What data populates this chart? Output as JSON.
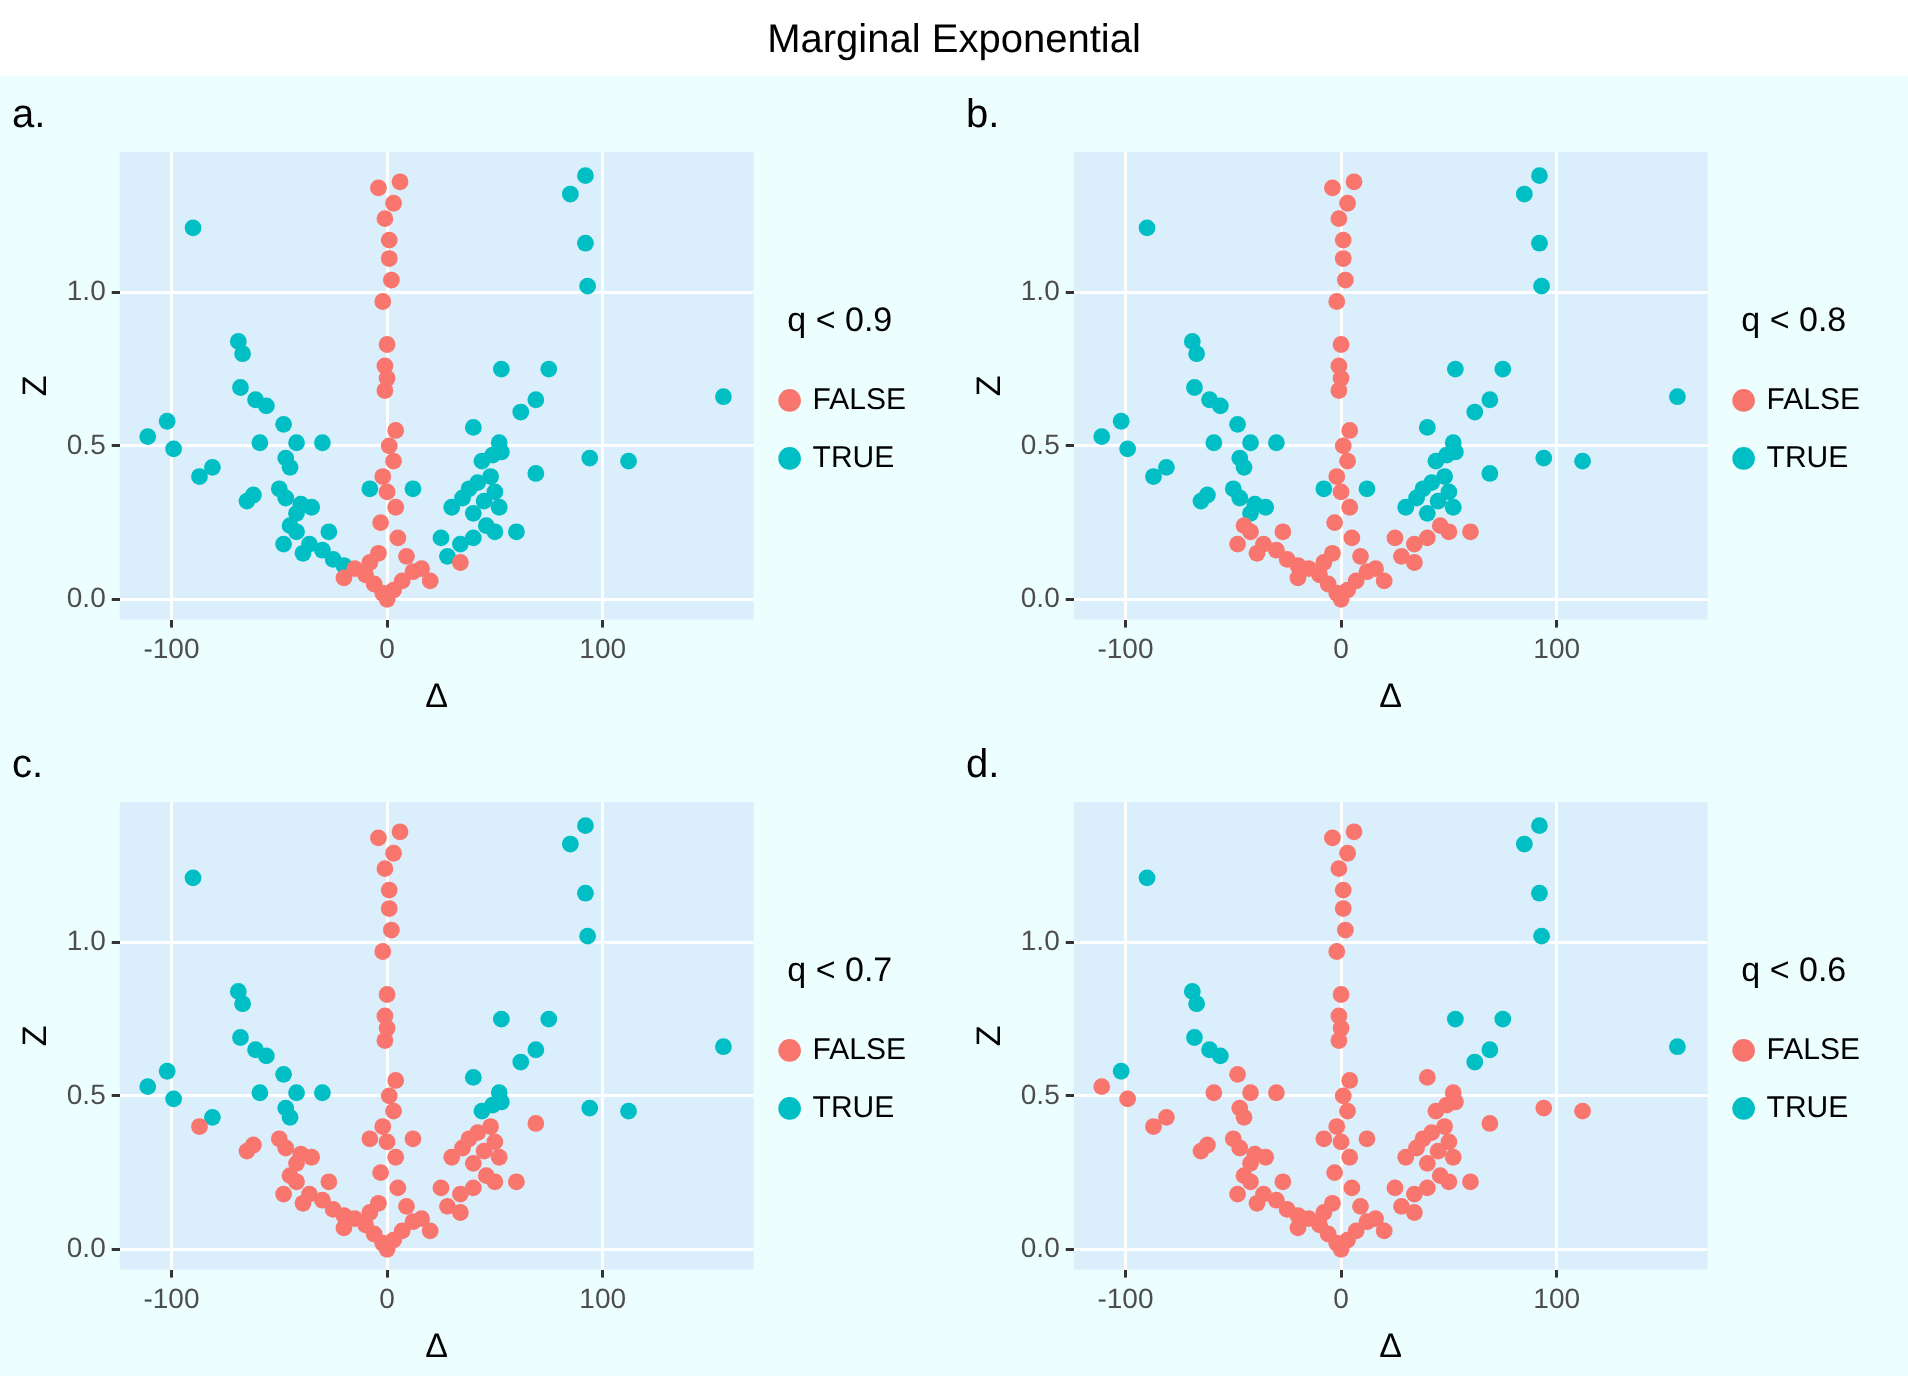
{
  "chart_data": [
    {
      "type": "scatter",
      "title": "a.",
      "annotations": [
        "Marginal Exponential"
      ],
      "xlabel": "Δ",
      "ylabel": "Z",
      "legend_title": "q < 0.9",
      "legend": "right",
      "grid": true,
      "marker": "circle",
      "xlim": [
        -124,
        170
      ],
      "ylim": [
        -0.066,
        1.457
      ],
      "xticks": [
        -100,
        0,
        100
      ],
      "yticks": [
        {
          "value": 0,
          "label": "0.0"
        },
        {
          "value": 0.5,
          "label": "0.5"
        },
        {
          "value": 1,
          "label": "1.0"
        }
      ],
      "series": [
        {
          "name": "FALSE",
          "color": "#f8766d",
          "x": [
            -4,
            6,
            3,
            -1,
            1,
            1,
            2,
            -2,
            0,
            -1,
            0,
            -1,
            4,
            1,
            3,
            -2,
            0,
            4,
            -3,
            5,
            -4,
            34,
            0,
            -2,
            3,
            -6,
            7,
            -10,
            12,
            -15,
            16,
            -20,
            20,
            -8,
            9
          ],
          "values": [
            1.34,
            1.36,
            1.29,
            1.24,
            1.17,
            1.11,
            1.04,
            0.97,
            0.83,
            0.76,
            0.72,
            0.68,
            0.55,
            0.5,
            0.45,
            0.4,
            0.35,
            0.3,
            0.25,
            0.2,
            0.15,
            0.12,
            0,
            0.02,
            0.03,
            0.05,
            0.06,
            0.08,
            0.09,
            0.1,
            0.1,
            0.07,
            0.06,
            0.12,
            0.14
          ]
        },
        {
          "name": "TRUE",
          "color": "#00bfc4",
          "x": [
            -90,
            85,
            92,
            92,
            93,
            156,
            -69,
            -67,
            -68,
            -61,
            -56,
            53,
            75,
            69,
            62,
            -102,
            -111,
            -99,
            -81,
            -59,
            -48,
            -42,
            -30,
            40,
            52,
            94,
            112,
            -47,
            -45,
            44,
            49,
            53,
            -87,
            -65,
            -62,
            -50,
            -47,
            -40,
            -42,
            -35,
            -8,
            12,
            30,
            35,
            38,
            42,
            45,
            50,
            52,
            69,
            48,
            40,
            -45,
            -36,
            -30,
            -25,
            -20,
            -39,
            -42,
            -48,
            28,
            34,
            40,
            46,
            50,
            25,
            -27,
            60
          ],
          "values": [
            1.21,
            1.32,
            1.38,
            1.16,
            1.02,
            0.66,
            0.84,
            0.8,
            0.69,
            0.65,
            0.63,
            0.75,
            0.75,
            0.65,
            0.61,
            0.58,
            0.53,
            0.49,
            0.43,
            0.51,
            0.57,
            0.51,
            0.51,
            0.56,
            0.51,
            0.46,
            0.45,
            0.46,
            0.43,
            0.45,
            0.47,
            0.48,
            0.4,
            0.32,
            0.34,
            0.36,
            0.33,
            0.31,
            0.28,
            0.3,
            0.36,
            0.36,
            0.3,
            0.33,
            0.36,
            0.38,
            0.32,
            0.35,
            0.3,
            0.41,
            0.4,
            0.28,
            0.24,
            0.18,
            0.16,
            0.13,
            0.11,
            0.15,
            0.22,
            0.18,
            0.14,
            0.18,
            0.2,
            0.24,
            0.22,
            0.2,
            0.22,
            0.22
          ]
        }
      ]
    },
    {
      "type": "scatter",
      "title": "b.",
      "xlabel": "Δ",
      "ylabel": "Z",
      "legend_title": "q < 0.8",
      "legend": "right",
      "grid": true,
      "marker": "circle",
      "xlim": [
        -124,
        170
      ],
      "ylim": [
        -0.066,
        1.457
      ],
      "xticks": [
        -100,
        0,
        100
      ],
      "yticks": [
        {
          "value": 0,
          "label": "0.0"
        },
        {
          "value": 0.5,
          "label": "0.5"
        },
        {
          "value": 1,
          "label": "1.0"
        }
      ],
      "series": [
        {
          "name": "FALSE",
          "color": "#f8766d",
          "x": [
            -45,
            -36,
            -30,
            -25,
            -20,
            -39,
            -42,
            -48,
            28,
            34,
            40,
            46,
            50,
            25,
            -27,
            60,
            -4,
            6,
            3,
            -1,
            1,
            1,
            2,
            -2,
            0,
            -1,
            0,
            -1,
            4,
            1,
            3,
            -2,
            0,
            4,
            -3,
            5,
            -4,
            34,
            0,
            -2,
            3,
            -6,
            7,
            -10,
            12,
            -15,
            16,
            -20,
            20,
            -8,
            9
          ],
          "values": [
            0.24,
            0.18,
            0.16,
            0.13,
            0.11,
            0.15,
            0.22,
            0.18,
            0.14,
            0.18,
            0.2,
            0.24,
            0.22,
            0.2,
            0.22,
            0.22,
            1.34,
            1.36,
            1.29,
            1.24,
            1.17,
            1.11,
            1.04,
            0.97,
            0.83,
            0.76,
            0.72,
            0.68,
            0.55,
            0.5,
            0.45,
            0.4,
            0.35,
            0.3,
            0.25,
            0.2,
            0.15,
            0.12,
            0,
            0.02,
            0.03,
            0.05,
            0.06,
            0.08,
            0.09,
            0.1,
            0.1,
            0.07,
            0.06,
            0.12,
            0.14
          ]
        },
        {
          "name": "TRUE",
          "color": "#00bfc4",
          "x": [
            -90,
            85,
            92,
            92,
            93,
            156,
            -69,
            -67,
            -68,
            -61,
            -56,
            53,
            75,
            69,
            62,
            -102,
            -111,
            -99,
            -81,
            -59,
            -48,
            -42,
            -30,
            40,
            52,
            94,
            112,
            -47,
            -45,
            44,
            49,
            53,
            -87,
            -65,
            -62,
            -50,
            -47,
            -40,
            -42,
            -35,
            -8,
            12,
            30,
            35,
            38,
            42,
            45,
            50,
            52,
            69,
            48,
            40
          ],
          "values": [
            1.21,
            1.32,
            1.38,
            1.16,
            1.02,
            0.66,
            0.84,
            0.8,
            0.69,
            0.65,
            0.63,
            0.75,
            0.75,
            0.65,
            0.61,
            0.58,
            0.53,
            0.49,
            0.43,
            0.51,
            0.57,
            0.51,
            0.51,
            0.56,
            0.51,
            0.46,
            0.45,
            0.46,
            0.43,
            0.45,
            0.47,
            0.48,
            0.4,
            0.32,
            0.34,
            0.36,
            0.33,
            0.31,
            0.28,
            0.3,
            0.36,
            0.36,
            0.3,
            0.33,
            0.36,
            0.38,
            0.32,
            0.35,
            0.3,
            0.41,
            0.4,
            0.28
          ]
        }
      ]
    },
    {
      "type": "scatter",
      "title": "c.",
      "xlabel": "Δ",
      "ylabel": "Z",
      "legend_title": "q < 0.7",
      "legend": "right",
      "grid": true,
      "marker": "circle",
      "xlim": [
        -124,
        170
      ],
      "ylim": [
        -0.066,
        1.457
      ],
      "xticks": [
        -100,
        0,
        100
      ],
      "yticks": [
        {
          "value": 0,
          "label": "0.0"
        },
        {
          "value": 0.5,
          "label": "0.5"
        },
        {
          "value": 1,
          "label": "1.0"
        }
      ],
      "series": [
        {
          "name": "FALSE",
          "color": "#f8766d",
          "x": [
            -87,
            -65,
            -62,
            -50,
            -47,
            -40,
            -42,
            -35,
            -8,
            12,
            30,
            35,
            38,
            42,
            45,
            50,
            52,
            69,
            48,
            40,
            -45,
            -36,
            -30,
            -25,
            -20,
            -39,
            -42,
            -48,
            28,
            34,
            40,
            46,
            50,
            25,
            -27,
            60,
            -4,
            6,
            3,
            -1,
            1,
            1,
            2,
            -2,
            0,
            -1,
            0,
            -1,
            4,
            1,
            3,
            -2,
            0,
            4,
            -3,
            5,
            -4,
            34,
            0,
            -2,
            3,
            -6,
            7,
            -10,
            12,
            -15,
            16,
            -20,
            20,
            -8,
            9
          ],
          "values": [
            0.4,
            0.32,
            0.34,
            0.36,
            0.33,
            0.31,
            0.28,
            0.3,
            0.36,
            0.36,
            0.3,
            0.33,
            0.36,
            0.38,
            0.32,
            0.35,
            0.3,
            0.41,
            0.4,
            0.28,
            0.24,
            0.18,
            0.16,
            0.13,
            0.11,
            0.15,
            0.22,
            0.18,
            0.14,
            0.18,
            0.2,
            0.24,
            0.22,
            0.2,
            0.22,
            0.22,
            1.34,
            1.36,
            1.29,
            1.24,
            1.17,
            1.11,
            1.04,
            0.97,
            0.83,
            0.76,
            0.72,
            0.68,
            0.55,
            0.5,
            0.45,
            0.4,
            0.35,
            0.3,
            0.25,
            0.2,
            0.15,
            0.12,
            0,
            0.02,
            0.03,
            0.05,
            0.06,
            0.08,
            0.09,
            0.1,
            0.1,
            0.07,
            0.06,
            0.12,
            0.14
          ]
        },
        {
          "name": "TRUE",
          "color": "#00bfc4",
          "x": [
            -90,
            85,
            92,
            92,
            93,
            156,
            -69,
            -67,
            -68,
            -61,
            -56,
            53,
            75,
            69,
            62,
            -102,
            -111,
            -99,
            -81,
            -59,
            -48,
            -42,
            -30,
            40,
            52,
            94,
            112,
            -47,
            -45,
            44,
            49,
            53
          ],
          "values": [
            1.21,
            1.32,
            1.38,
            1.16,
            1.02,
            0.66,
            0.84,
            0.8,
            0.69,
            0.65,
            0.63,
            0.75,
            0.75,
            0.65,
            0.61,
            0.58,
            0.53,
            0.49,
            0.43,
            0.51,
            0.57,
            0.51,
            0.51,
            0.56,
            0.51,
            0.46,
            0.45,
            0.46,
            0.43,
            0.45,
            0.47,
            0.48
          ]
        }
      ]
    },
    {
      "type": "scatter",
      "title": "d.",
      "xlabel": "Δ",
      "ylabel": "Z",
      "legend_title": "q < 0.6",
      "legend": "right",
      "grid": true,
      "marker": "circle",
      "xlim": [
        -124,
        170
      ],
      "ylim": [
        -0.066,
        1.457
      ],
      "xticks": [
        -100,
        0,
        100
      ],
      "yticks": [
        {
          "value": 0,
          "label": "0.0"
        },
        {
          "value": 0.5,
          "label": "0.5"
        },
        {
          "value": 1,
          "label": "1.0"
        }
      ],
      "series": [
        {
          "name": "FALSE",
          "color": "#f8766d",
          "x": [
            -111,
            -99,
            -81,
            -59,
            -48,
            -42,
            -30,
            40,
            52,
            94,
            112,
            -47,
            -45,
            44,
            49,
            53,
            -87,
            -65,
            -62,
            -50,
            -47,
            -40,
            -42,
            -35,
            -8,
            12,
            30,
            35,
            38,
            42,
            45,
            50,
            52,
            69,
            48,
            40,
            -45,
            -36,
            -30,
            -25,
            -20,
            -39,
            -42,
            -48,
            28,
            34,
            40,
            46,
            50,
            25,
            -27,
            60,
            -4,
            6,
            3,
            -1,
            1,
            1,
            2,
            -2,
            0,
            -1,
            0,
            -1,
            4,
            1,
            3,
            -2,
            0,
            4,
            -3,
            5,
            -4,
            34,
            0,
            -2,
            3,
            -6,
            7,
            -10,
            12,
            -15,
            16,
            -20,
            20,
            -8,
            9
          ],
          "values": [
            0.53,
            0.49,
            0.43,
            0.51,
            0.57,
            0.51,
            0.51,
            0.56,
            0.51,
            0.46,
            0.45,
            0.46,
            0.43,
            0.45,
            0.47,
            0.48,
            0.4,
            0.32,
            0.34,
            0.36,
            0.33,
            0.31,
            0.28,
            0.3,
            0.36,
            0.36,
            0.3,
            0.33,
            0.36,
            0.38,
            0.32,
            0.35,
            0.3,
            0.41,
            0.4,
            0.28,
            0.24,
            0.18,
            0.16,
            0.13,
            0.11,
            0.15,
            0.22,
            0.18,
            0.14,
            0.18,
            0.2,
            0.24,
            0.22,
            0.2,
            0.22,
            0.22,
            1.34,
            1.36,
            1.29,
            1.24,
            1.17,
            1.11,
            1.04,
            0.97,
            0.83,
            0.76,
            0.72,
            0.68,
            0.55,
            0.5,
            0.45,
            0.4,
            0.35,
            0.3,
            0.25,
            0.2,
            0.15,
            0.12,
            0,
            0.02,
            0.03,
            0.05,
            0.06,
            0.08,
            0.09,
            0.1,
            0.1,
            0.07,
            0.06,
            0.12,
            0.14
          ]
        },
        {
          "name": "TRUE",
          "color": "#00bfc4",
          "x": [
            -90,
            85,
            92,
            92,
            93,
            156,
            -69,
            -67,
            -68,
            -61,
            -56,
            53,
            75,
            69,
            62,
            -102
          ],
          "values": [
            1.21,
            1.32,
            1.38,
            1.16,
            1.02,
            0.66,
            0.84,
            0.8,
            0.69,
            0.65,
            0.63,
            0.75,
            0.75,
            0.65,
            0.61,
            0.58
          ]
        }
      ]
    }
  ]
}
